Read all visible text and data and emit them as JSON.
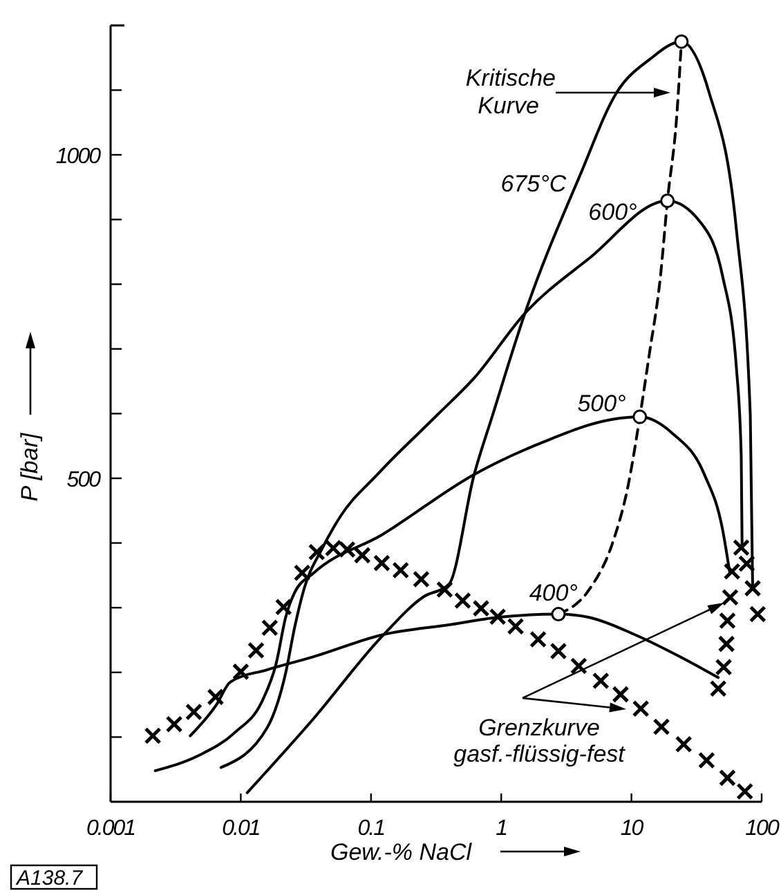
{
  "chart_data": {
    "type": "line",
    "xlabel": "Gew.-% NaCl",
    "ylabel": "P [bar]",
    "log": "x",
    "xlim": [
      0.001,
      100
    ],
    "xticks": [
      0.001,
      0.01,
      0.1,
      1,
      10,
      100
    ],
    "ylim": [
      0,
      1200
    ],
    "yticks": [
      {
        "value": 100,
        "label": null
      },
      {
        "value": 200,
        "label": null
      },
      {
        "value": 300,
        "label": null
      },
      {
        "value": 400,
        "label": null
      },
      500,
      {
        "value": 600,
        "label": null
      },
      {
        "value": 700,
        "label": null
      },
      {
        "value": 800,
        "label": null
      },
      {
        "value": 900,
        "label": null
      },
      1000,
      {
        "value": 1100,
        "label": null
      }
    ],
    "series": [
      {
        "name": "400°",
        "color": "#000000",
        "line_style": "solid",
        "x": [
          0.00409,
          0.0065,
          0.0083,
          0.0159,
          0.036,
          0.122,
          0.413,
          0.93,
          2.75,
          4.74,
          10.7,
          24.2,
          46.4
        ],
        "values": [
          102,
          150,
          185,
          204,
          224,
          258,
          274,
          285,
          290,
          285,
          258,
          223,
          192
        ]
      },
      {
        "name": "500°",
        "color": "#000000",
        "line_style": "solid",
        "x": [
          0.0022,
          0.00469,
          0.009,
          0.0147,
          0.0187,
          0.0221,
          0.026,
          0.036,
          0.122,
          0.62,
          2.1,
          7.13,
          11.6,
          20.5,
          36.3,
          50.2,
          56.7
        ],
        "values": [
          48,
          71,
          107,
          157,
          214,
          285,
          324,
          353,
          413,
          506,
          556,
          591,
          595,
          570,
          506,
          420,
          356
        ]
      },
      {
        "name": "600°",
        "color": "#000000",
        "line_style": "solid",
        "x": [
          0.00705,
          0.0159,
          0.0221,
          0.026,
          0.0305,
          0.0423,
          0.0586,
          0.112,
          0.323,
          0.62,
          1.52,
          4.74,
          18.9,
          33.5,
          50.2,
          64.1,
          69.7,
          70.8
        ],
        "values": [
          53,
          114,
          199,
          271,
          328,
          392,
          442,
          506,
          598,
          655,
          755,
          840,
          929,
          897,
          812,
          669,
          534,
          393
        ]
      },
      {
        "name": "675°C",
        "color": "#000000",
        "line_style": "solid",
        "x": [
          0.0112,
          0.036,
          0.122,
          0.254,
          0.396,
          0.62,
          0.86,
          1.52,
          4.04,
          7.74,
          13.7,
          24.2,
          39.4,
          64.1,
          81.8,
          85.3
        ],
        "values": [
          14,
          128,
          256,
          317,
          336,
          506,
          598,
          755,
          969,
          1097,
          1147,
          1175,
          1097,
          883,
          598,
          330
        ]
      },
      {
        "color": "#000000",
        "line_style": "dashed",
        "x": [
          2.75,
          4.74,
          7.13,
          9.48,
          11.6,
          13.7,
          16.7,
          18.9,
          22.3,
          24.2
        ],
        "values": [
          290,
          328,
          399,
          491,
          595,
          691,
          812,
          929,
          1061,
          1175
        ]
      },
      {
        "type": "scatter",
        "marker": "cross",
        "color": "#000000",
        "x": [
          0.00211,
          0.00308,
          0.00436,
          0.0064,
          0.01,
          0.0131,
          0.0167,
          0.0213,
          0.0296,
          0.0383,
          0.0513,
          0.0656,
          0.0857,
          0.121,
          0.169,
          0.243,
          0.368,
          0.506,
          0.7,
          0.94,
          1.29,
          1.92,
          2.75,
          3.94,
          5.82,
          8.25,
          11.8,
          17.0,
          25.2,
          37.8,
          54.6,
          74.3,
          46.4,
          51.1,
          53.7,
          54.6,
          57.3,
          59.2,
          69.7,
          76.8,
          85.3,
          93.3
        ],
        "values": [
          102,
          120,
          139,
          162,
          201,
          234,
          269,
          301,
          354,
          386,
          392,
          390,
          381,
          369,
          358,
          344,
          328,
          311,
          299,
          286,
          271,
          251,
          233,
          210,
          187,
          166,
          144,
          116,
          89,
          64,
          37,
          16,
          175,
          208,
          244,
          280,
          316,
          356,
          393,
          368,
          330,
          290
        ]
      },
      {
        "type": "scatter",
        "marker": "circle",
        "color": "#000000",
        "x": [
          2.75,
          11.6,
          18.9,
          24.2
        ],
        "values": [
          290,
          595,
          929,
          1175
        ]
      }
    ],
    "annotations": [
      "Kritische\nKurve",
      "Grenzkurve\ngasf.-flüssig-fest",
      "A138.7"
    ]
  }
}
